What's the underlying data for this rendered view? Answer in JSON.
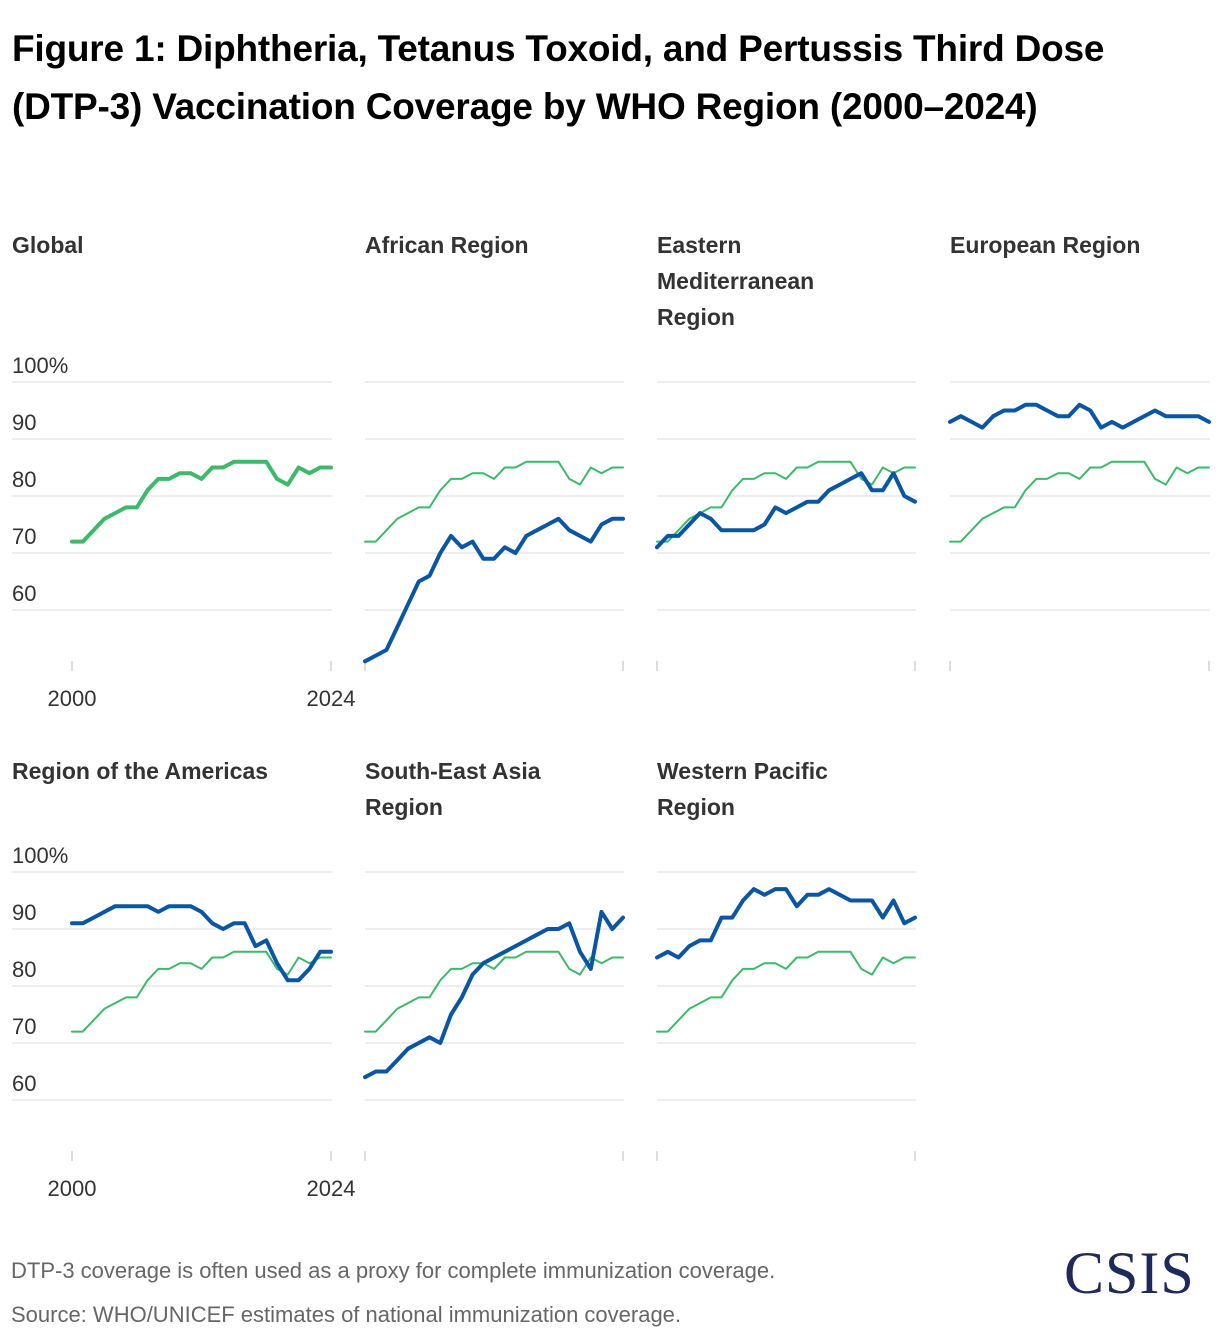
{
  "title": "Figure 1: Diphtheria, Tetanus Toxoid, and Pertussis Third Dose (DTP-3) Vaccination Coverage by WHO Region (2000–2024)",
  "note": "DTP-3 coverage is often used as a proxy for complete immunization coverage.",
  "source": "Source: WHO/UNICEF estimates of national immunization coverage.",
  "logo": "CSIS",
  "colors": {
    "global": "#3cb96b",
    "region": "#0b56a4",
    "grid": "#dddddd",
    "tick": "#bbbbbb",
    "text": "#333333"
  },
  "chart_data": {
    "type": "line",
    "xlim": [
      2000,
      2024
    ],
    "ylim": [
      50,
      100
    ],
    "y_ticks": [
      60,
      70,
      80,
      90,
      100
    ],
    "y_tick_labels": [
      "60",
      "70",
      "80",
      "90",
      "100%"
    ],
    "x_tick_labels": [
      "2000",
      "2024"
    ],
    "years": [
      2000,
      2001,
      2002,
      2003,
      2004,
      2005,
      2006,
      2007,
      2008,
      2009,
      2010,
      2011,
      2012,
      2013,
      2014,
      2015,
      2016,
      2017,
      2018,
      2019,
      2020,
      2021,
      2022,
      2023,
      2024
    ],
    "global": [
      72,
      72,
      74,
      76,
      77,
      78,
      78,
      81,
      83,
      83,
      84,
      84,
      83,
      85,
      85,
      86,
      86,
      86,
      86,
      83,
      82,
      85,
      84,
      85,
      85
    ],
    "panels": [
      {
        "title": "Global",
        "series": null
      },
      {
        "title": "African Region",
        "series": [
          51,
          52,
          53,
          57,
          61,
          65,
          66,
          70,
          73,
          71,
          72,
          69,
          69,
          71,
          70,
          73,
          74,
          75,
          76,
          74,
          73,
          72,
          75,
          76,
          76
        ]
      },
      {
        "title": "Eastern Mediterranean Region",
        "series": [
          71,
          73,
          73,
          75,
          77,
          76,
          74,
          74,
          74,
          74,
          75,
          78,
          77,
          78,
          79,
          79,
          81,
          82,
          83,
          84,
          81,
          81,
          84,
          80,
          79
        ]
      },
      {
        "title": "European Region",
        "series": [
          93,
          94,
          93,
          92,
          94,
          95,
          95,
          96,
          96,
          95,
          94,
          94,
          96,
          95,
          92,
          93,
          92,
          93,
          94,
          95,
          94,
          94,
          94,
          94,
          93
        ]
      },
      {
        "title": "Region of the Americas",
        "series": [
          91,
          91,
          92,
          93,
          94,
          94,
          94,
          94,
          93,
          94,
          94,
          94,
          93,
          91,
          90,
          91,
          91,
          87,
          88,
          84,
          81,
          81,
          83,
          86,
          86
        ]
      },
      {
        "title": "South-East Asia Region",
        "series": [
          64,
          65,
          65,
          67,
          69,
          70,
          71,
          70,
          75,
          78,
          82,
          84,
          85,
          86,
          87,
          88,
          89,
          90,
          90,
          91,
          86,
          83,
          93,
          90,
          92
        ]
      },
      {
        "title": "Western Pacific Region",
        "series": [
          85,
          86,
          85,
          87,
          88,
          88,
          92,
          92,
          95,
          97,
          96,
          97,
          97,
          94,
          96,
          96,
          97,
          96,
          95,
          95,
          95,
          92,
          95,
          91,
          92
        ]
      }
    ]
  }
}
